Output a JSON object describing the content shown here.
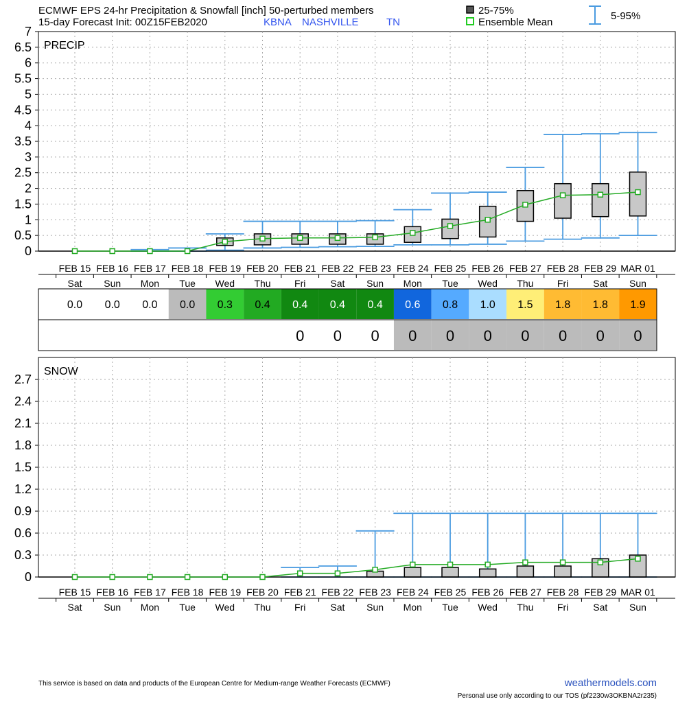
{
  "header": {
    "line1": "ECMWF EPS 24-hr Precipitation & Snowfall [inch]  50-perturbed members",
    "line2": "15-day Forecast Init: 00Z15FEB2020",
    "station_code": "KBNA",
    "station_name": "NASHVILLE",
    "station_state": "TN",
    "legend_box": "25-75%",
    "legend_mean": "Ensemble Mean",
    "legend_whisker": "5-95%"
  },
  "colors": {
    "box_fill": "#c8c8c8",
    "whisker": "#4a9be0",
    "mean_line": "#22aa22",
    "grid": "#aaaaaa",
    "station": "#3355ee",
    "brand": "#2a52be"
  },
  "precip_table": {
    "values": [
      "0.0",
      "0.0",
      "0.0",
      "0.0",
      "0.3",
      "0.4",
      "0.4",
      "0.4",
      "0.4",
      "0.6",
      "0.8",
      "1.0",
      "1.5",
      "1.8",
      "1.8",
      "1.9"
    ],
    "cell_colors": [
      "#ffffff",
      "#ffffff",
      "#ffffff",
      "#bbbbbb",
      "#33cc33",
      "#22aa22",
      "#118811",
      "#118811",
      "#118811",
      "#1166dd",
      "#55aaff",
      "#aaddff",
      "#ffee77",
      "#ffbb33",
      "#ffbb33",
      "#ff9900"
    ],
    "text_colors": [
      "#000",
      "#000",
      "#000",
      "#000",
      "#000",
      "#000",
      "#fff",
      "#fff",
      "#fff",
      "#fff",
      "#000",
      "#000",
      "#000",
      "#000",
      "#000",
      "#000"
    ]
  },
  "snow_table": {
    "values": [
      "",
      "",
      "",
      "",
      "",
      "",
      "0",
      "0",
      "0",
      "0",
      "0",
      "0",
      "0",
      "0",
      "0",
      "0"
    ],
    "cell_colors": [
      "#ffffff",
      "#ffffff",
      "#ffffff",
      "#ffffff",
      "#ffffff",
      "#ffffff",
      "#ffffff",
      "#ffffff",
      "#ffffff",
      "#bbbbbb",
      "#bbbbbb",
      "#bbbbbb",
      "#bbbbbb",
      "#bbbbbb",
      "#bbbbbb",
      "#bbbbbb"
    ]
  },
  "footer": {
    "disclaimer": "This service is based on data and products of the European Centre for Medium-range Weather Forecasts (ECMWF)",
    "brand": "weathermodels.com",
    "tos": "Personal use only according to our TOS (pf2230w3OKBNA2r235)"
  },
  "chart_data": [
    {
      "type": "box",
      "panel_label": "PRECIP",
      "categories": [
        "FEB 15",
        "FEB 16",
        "FEB 17",
        "FEB 18",
        "FEB 19",
        "FEB 20",
        "FEB 21",
        "FEB 22",
        "FEB 23",
        "FEB 24",
        "FEB 25",
        "FEB 26",
        "FEB 27",
        "FEB 28",
        "FEB 29",
        "MAR 01"
      ],
      "days": [
        "Sat",
        "Sun",
        "Mon",
        "Tue",
        "Wed",
        "Thu",
        "Fri",
        "Sat",
        "Sun",
        "Mon",
        "Tue",
        "Wed",
        "Thu",
        "Fri",
        "Sat",
        "Sun"
      ],
      "ylim": [
        0,
        7
      ],
      "yticks": [
        0,
        0.5,
        1,
        1.5,
        2,
        2.5,
        3,
        3.5,
        4,
        4.5,
        5,
        5.5,
        6,
        6.5,
        7
      ],
      "ytick_labels": [
        "0",
        "0.5",
        "1",
        "1.5",
        "2",
        "2.5",
        "3",
        "3.5",
        "4",
        "4.5",
        "5",
        "5.5",
        "6",
        "6.5",
        "7"
      ],
      "grid": true,
      "p5": [
        0,
        0,
        0,
        0,
        0.03,
        0.1,
        0.12,
        0.14,
        0.15,
        0.2,
        0.2,
        0.22,
        0.32,
        0.38,
        0.42,
        0.5
      ],
      "p25": [
        0,
        0,
        0,
        0,
        0.18,
        0.2,
        0.22,
        0.22,
        0.22,
        0.28,
        0.4,
        0.45,
        0.95,
        1.05,
        1.1,
        1.12
      ],
      "p75": [
        0,
        0,
        0,
        0,
        0.42,
        0.55,
        0.55,
        0.55,
        0.55,
        0.78,
        1.02,
        1.43,
        1.93,
        2.15,
        2.15,
        2.52
      ],
      "p95": [
        0,
        0,
        0.05,
        0.1,
        0.55,
        0.95,
        0.95,
        0.95,
        0.97,
        1.32,
        1.85,
        1.88,
        2.67,
        3.72,
        3.74,
        3.78
      ],
      "mean": [
        0,
        0,
        0,
        0,
        0.3,
        0.4,
        0.42,
        0.42,
        0.44,
        0.58,
        0.8,
        1.0,
        1.48,
        1.78,
        1.8,
        1.88
      ]
    },
    {
      "type": "box",
      "panel_label": "SNOW",
      "categories": [
        "FEB 15",
        "FEB 16",
        "FEB 17",
        "FEB 18",
        "FEB 19",
        "FEB 20",
        "FEB 21",
        "FEB 22",
        "FEB 23",
        "FEB 24",
        "FEB 25",
        "FEB 26",
        "FEB 27",
        "FEB 28",
        "FEB 29",
        "MAR 01"
      ],
      "days": [
        "Sat",
        "Sun",
        "Mon",
        "Tue",
        "Wed",
        "Thu",
        "Fri",
        "Sat",
        "Sun",
        "Mon",
        "Tue",
        "Wed",
        "Thu",
        "Fri",
        "Sat",
        "Sun"
      ],
      "ylim": [
        0,
        3
      ],
      "yticks": [
        0,
        0.3,
        0.6,
        0.9,
        1.2,
        1.5,
        1.8,
        2.1,
        2.4,
        2.7
      ],
      "ytick_labels": [
        "0",
        "0.3",
        "0.6",
        "0.9",
        "1.2",
        "1.5",
        "1.8",
        "2.1",
        "2.4",
        "2.7"
      ],
      "grid": true,
      "p5": [
        0,
        0,
        0,
        0,
        0,
        0,
        0,
        0,
        0,
        0,
        0,
        0,
        0,
        0,
        0,
        0
      ],
      "p25": [
        0,
        0,
        0,
        0,
        0,
        0,
        0,
        0,
        0,
        0,
        0,
        0,
        0,
        0,
        0,
        0
      ],
      "p75": [
        0,
        0,
        0,
        0,
        0,
        0,
        0,
        0,
        0.08,
        0.13,
        0.13,
        0.11,
        0.15,
        0.15,
        0.25,
        0.3
      ],
      "p95": [
        0,
        0,
        0,
        0,
        0,
        0,
        0.13,
        0.15,
        0.63,
        0.87,
        0.87,
        0.87,
        0.87,
        0.87,
        0.87,
        0.87
      ],
      "mean": [
        0,
        0,
        0,
        0,
        0,
        0,
        0.05,
        0.05,
        0.1,
        0.17,
        0.17,
        0.17,
        0.2,
        0.2,
        0.2,
        0.25
      ]
    }
  ]
}
